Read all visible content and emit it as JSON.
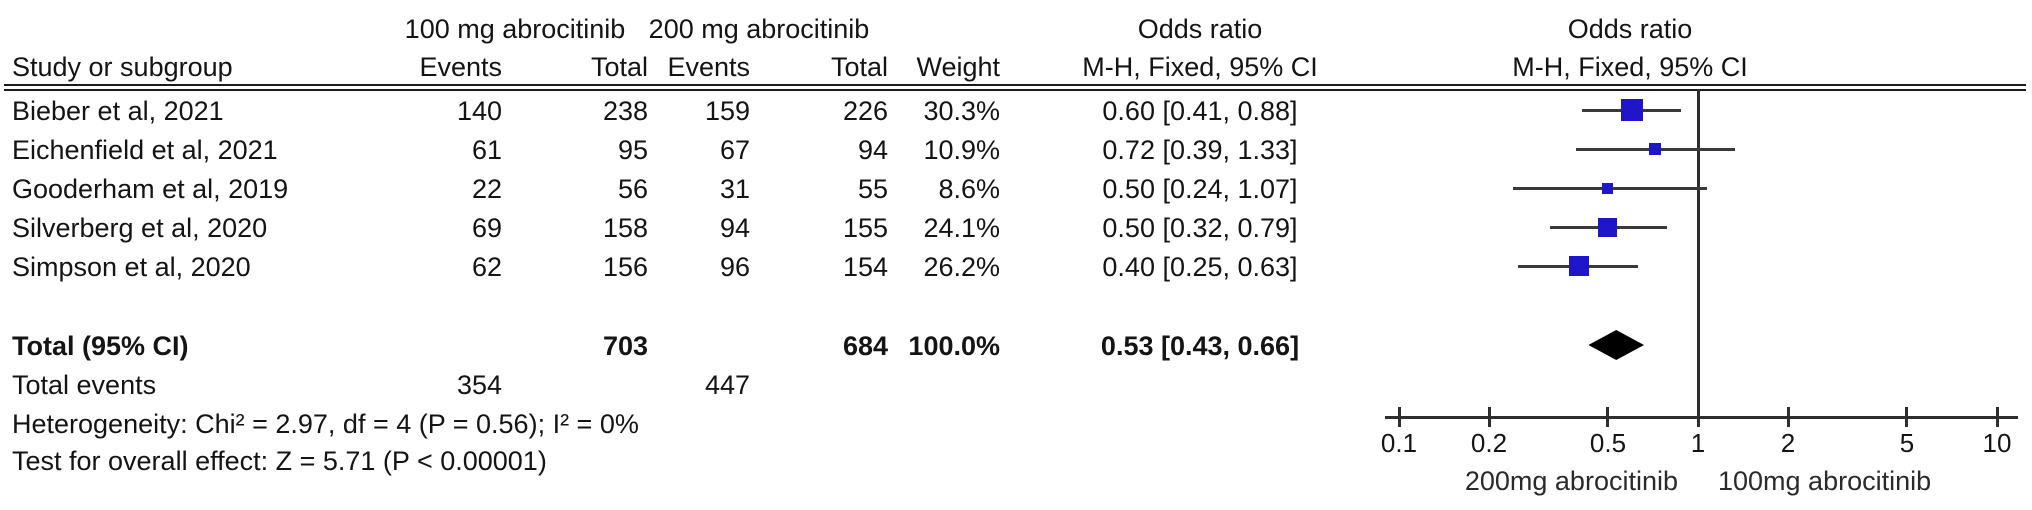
{
  "header": {
    "group1": "100 mg abrocitinib",
    "group2": "200 mg abrocitinib",
    "odds_ratio_col": "Odds ratio",
    "odds_ratio_plot": "Odds ratio",
    "study_col": "Study or subgroup",
    "events_col_1": "Events",
    "total_col_1": "Total",
    "events_col_2": "Events",
    "total_col_2": "Total",
    "weight_col": "Weight",
    "mh_fixed_col": "M-H, Fixed, 95% CI",
    "mh_fixed_plot": "M-H, Fixed, 95% CI"
  },
  "rows": [
    {
      "study": "Bieber et al, 2021",
      "e1": "140",
      "t1": "238",
      "e2": "159",
      "t2": "226",
      "weight": "30.3%",
      "or": "0.60 [0.41, 0.88]"
    },
    {
      "study": "Eichenfield et al, 2021",
      "e1": "61",
      "t1": "95",
      "e2": "67",
      "t2": "94",
      "weight": "10.9%",
      "or": "0.72 [0.39, 1.33]"
    },
    {
      "study": "Gooderham et al, 2019",
      "e1": "22",
      "t1": "56",
      "e2": "31",
      "t2": "55",
      "weight": "8.6%",
      "or": "0.50 [0.24, 1.07]"
    },
    {
      "study": "Silverberg et al, 2020",
      "e1": "69",
      "t1": "158",
      "e2": "94",
      "t2": "155",
      "weight": "24.1%",
      "or": "0.50 [0.32, 0.79]"
    },
    {
      "study": "Simpson et al, 2020",
      "e1": "62",
      "t1": "156",
      "e2": "96",
      "t2": "154",
      "weight": "26.2%",
      "or": "0.40 [0.25, 0.63]"
    }
  ],
  "total": {
    "label": "Total (95% CI)",
    "t1": "703",
    "t2": "684",
    "weight": "100.0%",
    "or": "0.53 [0.43, 0.66]"
  },
  "total_events": {
    "label": "Total events",
    "e1": "354",
    "e2": "447"
  },
  "heterogeneity": "Heterogeneity: Chi² = 2.97, df = 4 (P = 0.56); I² = 0%",
  "overall_effect": "Test for overall effect: Z = 5.71 (P < 0.00001)",
  "chart_data": {
    "type": "forest",
    "scale": "log10",
    "x_ticks": [
      "0.1",
      "0.2",
      "0.5",
      "1",
      "2",
      "5",
      "10"
    ],
    "xlim": [
      0.1,
      10
    ],
    "null_line": 1,
    "favors_left": "200mg abrocitinib",
    "favors_right": "100mg abrocitinib",
    "marker_color": "#1e16c8",
    "ci_color": "#3a3a3a",
    "diamond_color": "#000000",
    "studies": [
      {
        "name": "Bieber et al, 2021",
        "or": 0.6,
        "ci_low": 0.41,
        "ci_high": 0.88,
        "weight": 30.3
      },
      {
        "name": "Eichenfield et al, 2021",
        "or": 0.72,
        "ci_low": 0.39,
        "ci_high": 1.33,
        "weight": 10.9
      },
      {
        "name": "Gooderham et al, 2019",
        "or": 0.5,
        "ci_low": 0.24,
        "ci_high": 1.07,
        "weight": 8.6
      },
      {
        "name": "Silverberg et al, 2020",
        "or": 0.5,
        "ci_low": 0.32,
        "ci_high": 0.79,
        "weight": 24.1
      },
      {
        "name": "Simpson et al, 2020",
        "or": 0.4,
        "ci_low": 0.25,
        "ci_high": 0.63,
        "weight": 26.2
      }
    ],
    "total": {
      "or": 0.53,
      "ci_low": 0.43,
      "ci_high": 0.66,
      "weight": 100.0
    }
  }
}
